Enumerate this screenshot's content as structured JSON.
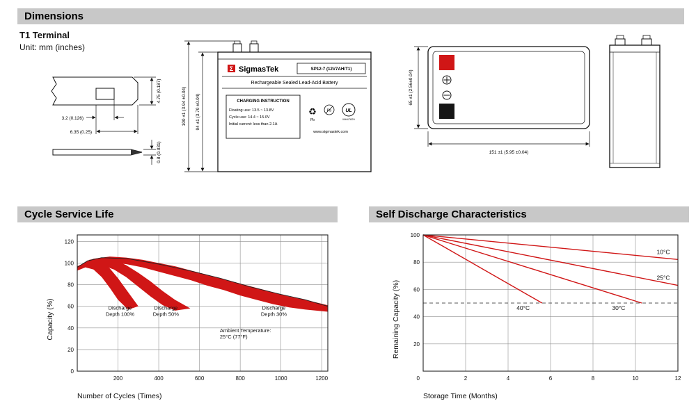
{
  "header": {
    "dimensions_title": "Dimensions"
  },
  "colors": {
    "accent_red": "#d01616",
    "header_bg": "#c8c8c8"
  },
  "icons": {
    "recycle": "♻"
  },
  "dimensions_section": {
    "terminal_type": "T1 Terminal",
    "unit": "Unit: mm (inches)",
    "terminal_drawing": {
      "height": "4.75 (0.187)",
      "slot_width": "3.2 (0.126)",
      "base_width": "6.35 (0.25)",
      "thickness": "0.8 (0.031)"
    },
    "front_view": {
      "brand": "SigmasTek",
      "logo_glyph": "Σ",
      "model": "SP12-7 (12V7AH/T1)",
      "battery_type": "Rechargeable Sealed Lead-Acid Battery",
      "charging_title": "CHARGING INSTRUCTION",
      "charging_line1": "Floating use: 13.5 ~ 13.8V",
      "charging_line2": "Cycle use: 14.4 ~ 15.0V",
      "charging_line3": "Initial current: less than 2.1A",
      "pb_label": "Pb",
      "ul_label": "UL",
      "ul_code": "MH47829",
      "website": "www.sigmastek.com",
      "total_height": "100 ±1 (3.94 ±0.04)",
      "body_height": "94 ±1 (3.70 ±0.04)"
    },
    "top_view": {
      "width_dim": "65 ±1 (2.56±0.04)",
      "length_dim": "151 ±1 (5.95 ±0.04)"
    }
  },
  "cycle_section": {
    "title": "Cycle Service Life"
  },
  "discharge_section": {
    "title": "Self Discharge Characteristics"
  },
  "chart_data": [
    {
      "type": "area",
      "title": "Cycle Service Life",
      "xlabel": "Number of Cycles (Times)",
      "ylabel": "Capacity (%)",
      "xlim": [
        0,
        1230
      ],
      "ylim": [
        0,
        126
      ],
      "xticks": [
        200,
        400,
        600,
        800,
        1000,
        1200
      ],
      "yticks": [
        0,
        20,
        40,
        60,
        80,
        100,
        120
      ],
      "grid": true,
      "legend_position": "none",
      "bands": [
        {
          "name": "Discharge Depth 100%",
          "upper": [
            [
              0,
              95
            ],
            [
              40,
              101
            ],
            [
              80,
              103
            ],
            [
              120,
              101
            ],
            [
              160,
              95
            ],
            [
              200,
              86
            ],
            [
              250,
              73
            ],
            [
              300,
              60
            ]
          ],
          "lower": [
            [
              0,
              93
            ],
            [
              40,
              96
            ],
            [
              80,
              94
            ],
            [
              120,
              87
            ],
            [
              160,
              77
            ],
            [
              200,
              66
            ],
            [
              250,
              57
            ],
            [
              300,
              60
            ]
          ]
        },
        {
          "name": "Discharge Depth 50%",
          "upper": [
            [
              0,
              96
            ],
            [
              60,
              103
            ],
            [
              120,
              105
            ],
            [
              180,
              103
            ],
            [
              240,
              98
            ],
            [
              300,
              91
            ],
            [
              360,
              83
            ],
            [
              420,
              74
            ],
            [
              480,
              66
            ],
            [
              555,
              58
            ]
          ],
          "lower": [
            [
              0,
              94
            ],
            [
              60,
              98
            ],
            [
              120,
              98
            ],
            [
              180,
              94
            ],
            [
              240,
              87
            ],
            [
              300,
              78
            ],
            [
              360,
              69
            ],
            [
              420,
              61
            ],
            [
              480,
              56
            ],
            [
              555,
              58
            ]
          ]
        },
        {
          "name": "Discharge Depth 30%",
          "upper": [
            [
              0,
              97
            ],
            [
              80,
              104
            ],
            [
              160,
              106
            ],
            [
              240,
              105
            ],
            [
              320,
              103
            ],
            [
              400,
              100
            ],
            [
              480,
              97
            ],
            [
              560,
              93
            ],
            [
              640,
              89
            ],
            [
              720,
              85
            ],
            [
              800,
              81
            ],
            [
              880,
              77
            ],
            [
              960,
              73
            ],
            [
              1040,
              69
            ],
            [
              1120,
              66
            ],
            [
              1230,
              61
            ]
          ],
          "lower": [
            [
              0,
              95
            ],
            [
              80,
              99
            ],
            [
              160,
              100
            ],
            [
              240,
              99
            ],
            [
              320,
              96
            ],
            [
              400,
              92
            ],
            [
              480,
              88
            ],
            [
              560,
              84
            ],
            [
              640,
              79
            ],
            [
              720,
              75
            ],
            [
              800,
              70
            ],
            [
              880,
              66
            ],
            [
              960,
              62
            ],
            [
              1040,
              59
            ],
            [
              1120,
              57
            ],
            [
              1230,
              55
            ]
          ]
        }
      ],
      "outline": [
        [
          0,
          96
        ],
        [
          50,
          102
        ],
        [
          120,
          105
        ],
        [
          250,
          104
        ],
        [
          400,
          99
        ],
        [
          550,
          93
        ],
        [
          700,
          86
        ],
        [
          850,
          78
        ],
        [
          1000,
          71
        ],
        [
          1120,
          66
        ],
        [
          1230,
          60
        ]
      ],
      "annotations": [
        {
          "x": 210,
          "y": 57,
          "lines": [
            "Discharge",
            "Depth 100%"
          ],
          "anchor": "middle"
        },
        {
          "x": 435,
          "y": 57,
          "lines": [
            "Discharge",
            "Depth 50%"
          ],
          "anchor": "middle"
        },
        {
          "x": 965,
          "y": 57,
          "lines": [
            "Discharge",
            "Depth 30%"
          ],
          "anchor": "middle"
        },
        {
          "x": 700,
          "y": 36,
          "lines": [
            "Ambient Temperature:",
            "25°C (77°F)"
          ],
          "anchor": "start"
        }
      ]
    },
    {
      "type": "line",
      "title": "Self Discharge Characteristics",
      "xlabel": "Storage Time (Months)",
      "ylabel": "Remaining Capacity (%)",
      "xlim": [
        0,
        12
      ],
      "ylim": [
        0,
        100
      ],
      "xticks": [
        2,
        4,
        6,
        8,
        10,
        12
      ],
      "yticks": [
        20,
        40,
        60,
        80,
        100
      ],
      "origin_label": "0",
      "grid": true,
      "legend_position": "inline-labels",
      "series": [
        {
          "name": "10°C",
          "points": [
            [
              0,
              100
            ],
            [
              12,
              82
            ]
          ],
          "label_at": [
            11.0,
            86
          ]
        },
        {
          "name": "25°C",
          "points": [
            [
              0,
              100
            ],
            [
              12,
              63
            ]
          ],
          "label_at": [
            11.0,
            67
          ]
        },
        {
          "name": "30°C",
          "points": [
            [
              0,
              100
            ],
            [
              10.3,
              50
            ]
          ],
          "label_at": [
            8.9,
            45
          ]
        },
        {
          "name": "40°C",
          "points": [
            [
              0,
              100
            ],
            [
              5.6,
              50
            ]
          ],
          "label_at": [
            4.4,
            45
          ]
        }
      ],
      "ref_lines": [
        {
          "y": 50,
          "style": "dashed"
        }
      ]
    }
  ]
}
